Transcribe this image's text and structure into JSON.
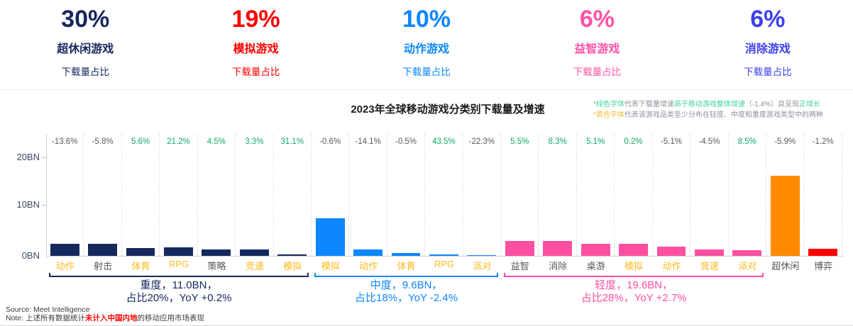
{
  "stats": [
    {
      "pct": "30%",
      "name": "超休闲游戏",
      "sub": "下载量占比",
      "color": "#16265c"
    },
    {
      "pct": "19%",
      "name": "模拟游戏",
      "sub": "下载量占比",
      "color": "#ff0000"
    },
    {
      "pct": "10%",
      "name": "动作游戏",
      "sub": "下载量占比",
      "color": "#0d86ff"
    },
    {
      "pct": "6%",
      "name": "益智游戏",
      "sub": "下载量占比",
      "color": "#ff52a5"
    },
    {
      "pct": "6%",
      "name": "消除游戏",
      "sub": "下载量占比",
      "color": "#3c3ff0"
    }
  ],
  "notes": {
    "line1": [
      {
        "t": "*绿色字体",
        "c": "green"
      },
      {
        "t": "代表下载量增速",
        "c": "gray"
      },
      {
        "t": "高于移动游戏整体增速",
        "c": "green"
      },
      {
        "t": "（-1.4%）且呈现",
        "c": "gray"
      },
      {
        "t": "正增长",
        "c": "green"
      }
    ],
    "line2": [
      {
        "t": "*黄色字体",
        "c": "yellow"
      },
      {
        "t": "代表该游戏品类至少分布在轻度、中度和重度游戏类型中的两种",
        "c": "gray"
      }
    ]
  },
  "chart_data": {
    "type": "bar",
    "title": "2023年全球移动游戏分类别下载量及增速",
    "xlabel": "",
    "ylabel": "",
    "yticks": [
      "20BN",
      "10BN",
      "0BN"
    ],
    "ylim": [
      0,
      24.75
    ],
    "grid": "vertical-dashed",
    "legend_position": "none",
    "value_unit": "BN downloads",
    "groups": {
      "heavy": {
        "color": "#15295e",
        "caption": [
          "重度，11.0BN，",
          "占比20%，YoY +0.2%"
        ]
      },
      "medium": {
        "color": "#0d86ff",
        "caption": [
          "中度，9.6BN，",
          "占比18%，YoY -2.4%"
        ]
      },
      "light": {
        "color": "#ff4fa1",
        "caption": [
          "轻度，19.6BN，",
          "占比28%，YoY +2.7%"
        ]
      },
      "hyper": {
        "color": "#ff8a00"
      },
      "casino": {
        "color": "#ff0000"
      }
    },
    "bars": [
      {
        "label": "动作",
        "group": "heavy",
        "value_bn": 2.4,
        "growth": "-13.6%",
        "multi_type": true
      },
      {
        "label": "射击",
        "group": "heavy",
        "value_bn": 2.4,
        "growth": "-5.8%",
        "multi_type": false
      },
      {
        "label": "体育",
        "group": "heavy",
        "value_bn": 1.6,
        "growth": "5.6%",
        "multi_type": true
      },
      {
        "label": "RPG",
        "group": "heavy",
        "value_bn": 1.75,
        "growth": "21.2%",
        "multi_type": true
      },
      {
        "label": "策略",
        "group": "heavy",
        "value_bn": 1.35,
        "growth": "4.5%",
        "multi_type": false
      },
      {
        "label": "竞速",
        "group": "heavy",
        "value_bn": 1.35,
        "growth": "3.3%",
        "multi_type": true
      },
      {
        "label": "模拟",
        "group": "heavy",
        "value_bn": 0.35,
        "growth": "31.1%",
        "multi_type": true
      },
      {
        "label": "模拟",
        "group": "medium",
        "value_bn": 7.6,
        "growth": "-0.6%",
        "multi_type": true
      },
      {
        "label": "动作",
        "group": "medium",
        "value_bn": 1.3,
        "growth": "-14.1%",
        "multi_type": true
      },
      {
        "label": "体育",
        "group": "medium",
        "value_bn": 0.65,
        "growth": "-0.5%",
        "multi_type": true
      },
      {
        "label": "RPG",
        "group": "medium",
        "value_bn": 0.25,
        "growth": "43.5%",
        "multi_type": true
      },
      {
        "label": "派对",
        "group": "medium",
        "value_bn": 0.1,
        "growth": "-22.3%",
        "multi_type": true
      },
      {
        "label": "益智",
        "group": "light",
        "value_bn": 3.0,
        "growth": "5.5%",
        "multi_type": false
      },
      {
        "label": "消除",
        "group": "light",
        "value_bn": 3.1,
        "growth": "8.3%",
        "multi_type": false
      },
      {
        "label": "桌游",
        "group": "light",
        "value_bn": 2.5,
        "growth": "5.1%",
        "multi_type": false
      },
      {
        "label": "模拟",
        "group": "light",
        "value_bn": 2.4,
        "growth": "0.2%",
        "multi_type": true
      },
      {
        "label": "动作",
        "group": "light",
        "value_bn": 1.85,
        "growth": "-5.1%",
        "multi_type": true
      },
      {
        "label": "竞速",
        "group": "light",
        "value_bn": 1.35,
        "growth": "-4.5%",
        "multi_type": true
      },
      {
        "label": "派对",
        "group": "light",
        "value_bn": 1.1,
        "growth": "8.5%",
        "multi_type": true
      },
      {
        "label": "超休闲",
        "group": "hyper",
        "value_bn": 16.3,
        "growth": "-5.9%",
        "multi_type": false
      },
      {
        "label": "博弈",
        "group": "casino",
        "value_bn": 1.5,
        "growth": "-1.2%",
        "multi_type": false
      }
    ]
  },
  "footer": {
    "source": "Source: Meet Intelligence",
    "note_prefix": "Note: 上述所有数据统计",
    "note_red": "未计入中国内地",
    "note_suffix": "的移动应用市场表现"
  }
}
